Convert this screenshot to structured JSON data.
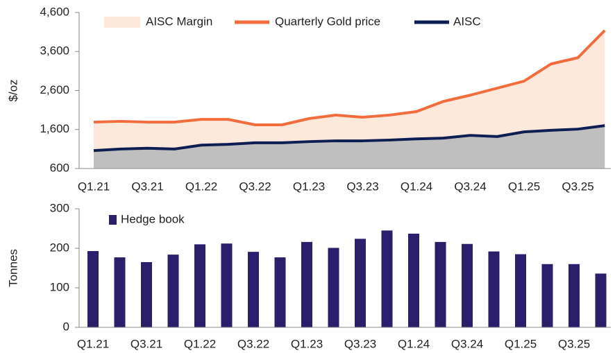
{
  "chart_data": [
    {
      "type": "line",
      "y_label": "$/oz",
      "categories": [
        "Q1.21",
        null,
        "Q3.21",
        null,
        "Q1.22",
        null,
        "Q3.22",
        null,
        "Q1.23",
        null,
        "Q3.23",
        null,
        "Q1.24",
        null,
        "Q3.24",
        null,
        "Q1.25",
        null,
        "Q3.25",
        null
      ],
      "margin_fill": {
        "name": "AISC Margin",
        "color": "#fde9dc"
      },
      "base_fill_color": "#bfbfbf",
      "series": [
        {
          "name": "Quarterly Gold price",
          "color": "#f26d3d",
          "values": [
            1790,
            1810,
            1790,
            1790,
            1860,
            1860,
            1720,
            1720,
            1880,
            1970,
            1915,
            1970,
            2060,
            2320,
            2480,
            2660,
            2840,
            3280,
            3440,
            4140
          ]
        },
        {
          "name": "AISC",
          "color": "#0d1e52",
          "values": [
            1060,
            1100,
            1120,
            1100,
            1200,
            1220,
            1260,
            1260,
            1290,
            1310,
            1310,
            1330,
            1360,
            1380,
            1450,
            1420,
            1540,
            1580,
            1610,
            1700
          ]
        }
      ],
      "ylim": [
        600,
        4600
      ],
      "yticks": [
        600,
        {
          "value": 1600,
          "label": "1,600"
        },
        {
          "value": 2600,
          "label": "2,600"
        },
        {
          "value": 3600,
          "label": "3,600"
        },
        {
          "value": 4600,
          "label": "4,600"
        }
      ]
    },
    {
      "type": "bar",
      "y_label": "Tonnes",
      "categories": [
        "Q1.21",
        null,
        "Q3.21",
        null,
        "Q1.22",
        null,
        "Q3.22",
        null,
        "Q1.23",
        null,
        "Q3.23",
        null,
        "Q1.24",
        null,
        "Q3.24",
        null,
        "Q1.25",
        null,
        "Q3.25",
        null
      ],
      "series": [
        {
          "name": "Hedge book",
          "color": "#2b1f6b",
          "values": [
            193,
            177,
            165,
            184,
            210,
            212,
            191,
            177,
            216,
            201,
            224,
            245,
            237,
            216,
            211,
            192,
            185,
            160,
            160,
            136
          ]
        }
      ],
      "ylim": [
        0,
        300
      ],
      "yticks": [
        0,
        100,
        200,
        300
      ]
    }
  ]
}
